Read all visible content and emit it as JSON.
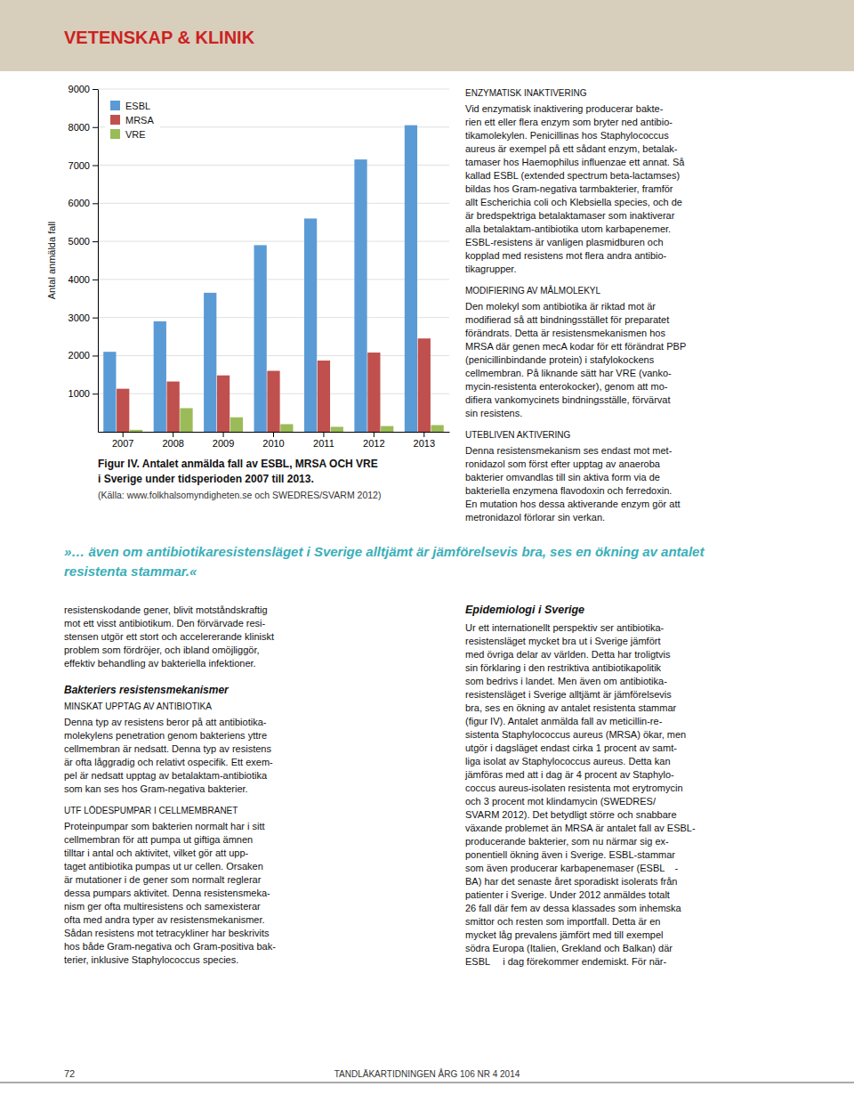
{
  "chart_data": {
    "type": "bar",
    "categories": [
      "2007",
      "2008",
      "2009",
      "2010",
      "2011",
      "2012",
      "2013"
    ],
    "series": [
      {
        "name": "ESBL",
        "color": "#5B9BD5",
        "values": [
          2100,
          2900,
          3650,
          4900,
          5600,
          7150,
          8050
        ]
      },
      {
        "name": "MRSA",
        "color": "#C0504D",
        "values": [
          1130,
          1320,
          1480,
          1600,
          1870,
          2080,
          2450
        ]
      },
      {
        "name": "VRE",
        "color": "#9BBB59",
        "values": [
          50,
          620,
          380,
          200,
          130,
          150,
          175
        ]
      }
    ],
    "y_label": "Antal anmälda fall",
    "ylim": [
      0,
      9000
    ],
    "yticks": [
      1000,
      2000,
      3000,
      4000,
      5000,
      6000,
      7000,
      8000,
      9000
    ],
    "grid": true,
    "legend": "upper left"
  },
  "page": {
    "header_text": "VETENSKAP & KLINIK",
    "header_bg": "#D8CEBC",
    "header_text_color": "#CC2222",
    "caption": [
      "Figur IV. Antalet anmälda fall av ESBL, MRSA OCH VRE",
      "i Sverige under tidsperioden 2007 till 2013.",
      "(Källa: www.folkhalsomyndigheten.se och SWEDRES/SVARM 2012)"
    ],
    "quote": [
      "»… även om antibiotikaresistensläget i Sverige alltjämt är jämförelsevis bra, ses en ökning av antalet",
      "resistenta stammar.«"
    ],
    "quote_color": "#3AAFB9",
    "right_column": [
      {
        "heading": "ENZYMATISK INAKTIVERING",
        "body": "Vid enzymatisk inaktivering producerar bakte-\nrien ett eller flera enzym som bryter ned antibio-\ntikamolekylen. Penicillinas hos Staphylococcus\naureus är exempel på ett sådant enzym, betalak-\ntamaser hos Haemophilus influenzae ett annat. Så\nkallad ESBL (extended spectrum beta-lactamses)\nbildas hos Gram-negativa tarmbakterier, framför\nallt Escherichia coli och Klebsiella species, och de\när bredspektriga betalaktamaser som inaktiverar\nalla betalaktam-antibiotika utom karbapenemer.\nESBL-resistens är vanligen plasmidburen och\nkopplad med resistens mot flera andra antibio-\ntikagrupper."
      },
      {
        "heading": "MODIFIERING AV MÅLMOLEKYL",
        "body": "Den molekyl som antibiotika är riktad mot är\nmodifierad så att bindningsstället för preparatet\nförändrats. Detta är resistensmekanismen hos\nMRSA där genen mecA kodar för ett förändrat PBP\n(penicillinbindande protein) i stafylokockens\ncellmembran. På liknande sätt har VRE (vanko-\nmycin-resistenta enterokocker), genom att mo-\ndifiera vankomycinets bindningsställe, förvärvat\nsin resistens."
      },
      {
        "heading": "UTEBLIVEN AKTIVERING",
        "body": "Denna resistensmekanism ses endast mot met-\nronidazol som först efter upptag av anaeroba\nbakterier omvandlas till sin aktiva form via de\nbakteriella enzymena flavodoxin och ferredoxin.\nEn mutation hos dessa aktiverande enzym gör att\nmetronidazol förlorar sin verkan."
      }
    ],
    "right_section": {
      "heading": "Epidemiologi i Sverige",
      "body": "Ur ett internationellt perspektiv ser antibiotika-\nresistensläget mycket bra ut i Sverige jämfört\nmed övriga delar av världen. Detta har troligtvis\nsin förklaring i den restriktiva antibiotikapolitik\nsom bedrivs i landet. Men även om antibiotika-\nresistensläget i Sverige alltjämt är jämförelsevis\nbra, ses en ökning av antalet resistenta stammar\n(figur IV). Antalet anmälda fall av meticillin-re-\nsistenta Staphylococcus aureus (MRSA) ökar, men\nutgör i dagsläget endast cirka 1 procent av samt-\nliga isolat av Staphylococcus aureus. Detta kan\njämföras med att i dag är 4 procent av Staphylo-\ncoccus aureus-isolaten resistenta mot erytromycin\noch 3 procent mot klindamycin (SWEDRES/\nSVARM 2012). Det betydligt större och snabbare\nväxande problemet än MRSA är antalet fall av ESBL-\nproducerande bakterier, som nu närmar sig ex-\nponentiell ökning även i Sverige. ESBL-stammar\nsom även producerar karbapenemaser (ESBL  -\nBA) har det senaste året sporadiskt isolerats från\npatienter i Sverige. Under 2012 anmäldes totalt\n26 fall där fem av dessa klassades som inhemska\nsmittor och resten som importfall. Detta är en\nmycket låg prevalens jämfört med till exempel\nsödra Europa (Italien, Grekland och Balkan) där\nESBL   i dag förekommer endemiskt. För när-"
    },
    "left_intro": "resistenskodande gener, blivit motståndskraftig\nmot ett visst antibiotikum. Den förvärvade resi-\nstensen utgör ett stort och accelererande kliniskt\nproblem som fördröjer, och ibland omöjliggör,\neffektiv behandling av bakteriella infektioner.",
    "left_section": {
      "heading": "Bakteriers resistensmekanismer",
      "subsections": [
        {
          "heading": "MINSKAT UPPTAG AV ANTIBIOTIKA",
          "body": "Denna typ av resistens beror på att antibiotika-\nmolekylens penetration genom bakteriens yttre\ncellmembran är nedsatt. Denna typ av resistens\när ofta låggradig och relativt ospecifik. Ett exem-\npel är nedsatt upptag av betalaktam-antibiotika\nsom kan ses hos Gram-negativa bakterier."
        },
        {
          "heading": "UTF LÖDESPUMPAR I CELLMEMBRANET",
          "body": "Proteinpumpar som bakterien normalt har i sitt\ncellmembran för att pumpa ut giftiga ämnen\ntilltar i antal och aktivitet, vilket gör att upp-\ntaget antibiotika pumpas ut ur cellen. Orsaken\när mutationer i de gener som normalt reglerar\ndessa pumpars aktivitet. Denna resistensmeka-\nnism ger ofta multiresistens och samexisterar\nofta med andra typer av resistensmekanismer.\nSådan resistens mot tetracykliner har beskrivits\nhos både Gram-negativa och Gram-positiva bak-\nterier, inklusive Staphylococcus species."
        }
      ]
    },
    "footer_page": "72",
    "footer_journal": "TANDLÄKARTIDNINGEN ÅRG 106 NR 4 2014"
  }
}
